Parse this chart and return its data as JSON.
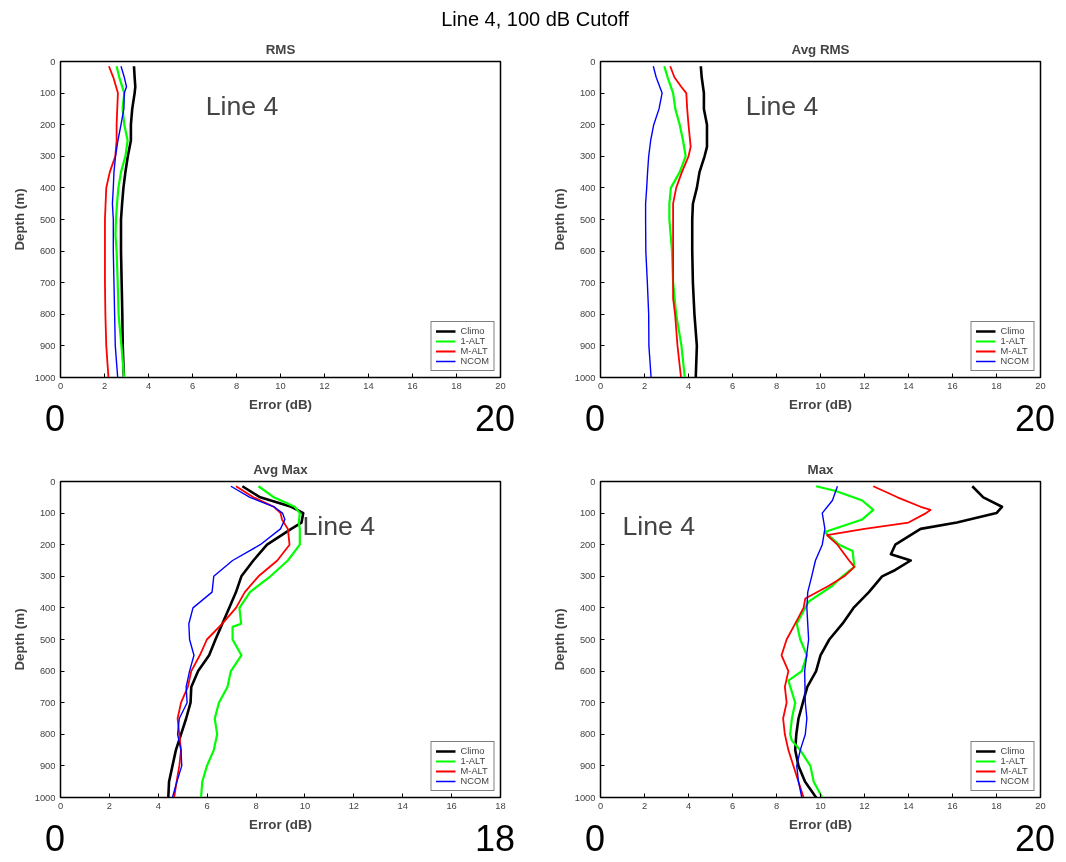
{
  "chart_data": [
    {
      "type": "line",
      "title": "RMS",
      "xlabel": "Error (dB)",
      "ylabel": "Depth (m)",
      "annotations": [
        "Line 4, 100 dB Cutoff",
        "Line 4",
        "0",
        "20"
      ],
      "xlim": [
        0,
        20
      ],
      "xticks": [
        0,
        2,
        4,
        6,
        8,
        10,
        12,
        14,
        16,
        18,
        20
      ],
      "ylim": [
        1000,
        0
      ],
      "yticks": [
        0,
        100,
        200,
        300,
        400,
        500,
        600,
        700,
        800,
        900,
        1000
      ],
      "legend": "bottom right",
      "grid": false,
      "series": [
        {
          "name": "Climo",
          "color": "#000000",
          "x": [
            3.34,
            3.37,
            3.4,
            3.37,
            3.26,
            3.2,
            3.2,
            3.06,
            2.95,
            2.86,
            2.8,
            2.75,
            2.75,
            2.78,
            2.81,
            2.83,
            2.88
          ],
          "values": [
            15,
            50,
            80,
            100,
            150,
            200,
            250,
            300,
            350,
            400,
            450,
            500,
            600,
            700,
            800,
            900,
            1000
          ]
        },
        {
          "name": "1-ALT",
          "color": "#00ff00",
          "x": [
            2.55,
            2.67,
            2.9,
            2.82,
            2.9,
            3.05,
            2.95,
            2.75,
            2.63,
            2.57,
            2.52,
            2.5,
            2.55,
            2.6,
            2.64,
            2.77,
            2.89
          ],
          "values": [
            15,
            50,
            100,
            150,
            200,
            250,
            300,
            350,
            400,
            450,
            500,
            550,
            600,
            700,
            800,
            900,
            1000
          ]
        },
        {
          "name": "M-ALT",
          "color": "#ff0000",
          "x": [
            2.2,
            2.4,
            2.61,
            2.58,
            2.55,
            2.55,
            2.49,
            2.24,
            2.08,
            2.05,
            2.02,
            2.02,
            2.02,
            2.04,
            2.08,
            2.18
          ],
          "values": [
            15,
            50,
            100,
            150,
            200,
            250,
            300,
            350,
            400,
            450,
            500,
            600,
            700,
            800,
            900,
            1000
          ]
        },
        {
          "name": "NCOM",
          "color": "#0000ff",
          "x": [
            2.75,
            2.9,
            3.0,
            2.9,
            2.88,
            2.75,
            2.61,
            2.5,
            2.43,
            2.4,
            2.36,
            2.4,
            2.4,
            2.43,
            2.46,
            2.49,
            2.6
          ],
          "values": [
            15,
            50,
            80,
            100,
            150,
            200,
            250,
            300,
            350,
            400,
            450,
            500,
            600,
            700,
            800,
            900,
            1000
          ]
        }
      ]
    },
    {
      "type": "line",
      "title": "Avg RMS",
      "xlabel": "Error (dB)",
      "ylabel": "Depth (m)",
      "annotations": [
        "Line 4",
        "0",
        "20"
      ],
      "xlim": [
        0,
        20
      ],
      "xticks": [
        0,
        2,
        4,
        6,
        8,
        10,
        12,
        14,
        16,
        18,
        20
      ],
      "ylim": [
        1000,
        0
      ],
      "yticks": [
        0,
        100,
        200,
        300,
        400,
        500,
        600,
        700,
        800,
        900,
        1000
      ],
      "legend": "bottom right",
      "grid": false,
      "series": [
        {
          "name": "Climo",
          "color": "#000000",
          "x": [
            4.56,
            4.6,
            4.7,
            4.7,
            4.84,
            4.84,
            4.73,
            4.5,
            4.38,
            4.2,
            4.17,
            4.17,
            4.2,
            4.27,
            4.38,
            4.33
          ],
          "values": [
            15,
            50,
            100,
            150,
            200,
            270,
            300,
            350,
            400,
            450,
            500,
            600,
            700,
            800,
            900,
            1000
          ]
        },
        {
          "name": "1-ALT",
          "color": "#00ff00",
          "x": [
            2.9,
            3.05,
            3.3,
            3.4,
            3.6,
            3.75,
            3.87,
            3.6,
            3.2,
            3.13,
            3.13,
            3.25,
            3.3,
            3.44,
            3.68,
            3.83
          ],
          "values": [
            15,
            50,
            100,
            150,
            200,
            250,
            300,
            350,
            400,
            450,
            500,
            600,
            700,
            800,
            900,
            1000
          ]
        },
        {
          "name": "M-ALT",
          "color": "#ff0000",
          "x": [
            3.17,
            3.36,
            3.67,
            3.9,
            3.94,
            4.0,
            4.1,
            4.0,
            3.7,
            3.44,
            3.3,
            3.3,
            3.3,
            3.3,
            3.3,
            3.39,
            3.5,
            3.66
          ],
          "values": [
            15,
            50,
            80,
            100,
            150,
            200,
            270,
            300,
            350,
            400,
            450,
            500,
            600,
            700,
            750,
            800,
            900,
            1000
          ]
        },
        {
          "name": "NCOM",
          "color": "#0000ff",
          "x": [
            2.4,
            2.53,
            2.8,
            2.66,
            2.42,
            2.28,
            2.19,
            2.14,
            2.1,
            2.05,
            2.05,
            2.06,
            2.13,
            2.19,
            2.2,
            2.3
          ],
          "values": [
            15,
            50,
            100,
            150,
            200,
            250,
            300,
            350,
            400,
            450,
            500,
            600,
            700,
            800,
            900,
            1000
          ]
        }
      ]
    },
    {
      "type": "line",
      "title": "Avg Max",
      "xlabel": "Error (dB)",
      "ylabel": "Depth (m)",
      "annotations": [
        "Line 4",
        "0",
        "18"
      ],
      "xlim": [
        0,
        18
      ],
      "xticks": [
        0,
        2,
        4,
        6,
        8,
        10,
        12,
        14,
        16,
        18
      ],
      "ylim": [
        1000,
        0
      ],
      "yticks": [
        0,
        100,
        200,
        300,
        400,
        500,
        600,
        700,
        800,
        900,
        1000
      ],
      "legend": "bottom right",
      "grid": false,
      "series": [
        {
          "name": "Climo",
          "color": "#000000",
          "x": [
            7.44,
            8.17,
            9.44,
            9.93,
            9.86,
            9.44,
            8.45,
            7.89,
            7.4,
            7.18,
            6.9,
            6.62,
            6.34,
            6.08,
            5.63,
            5.35,
            5.32,
            5.14,
            4.93,
            4.72,
            4.58,
            4.44,
            4.41
          ],
          "values": [
            15,
            50,
            80,
            100,
            130,
            150,
            200,
            250,
            300,
            350,
            400,
            450,
            500,
            550,
            600,
            650,
            700,
            750,
            800,
            850,
            900,
            950,
            1000
          ]
        },
        {
          "name": "1-ALT",
          "color": "#00ff00",
          "x": [
            8.1,
            8.73,
            9.58,
            9.79,
            9.75,
            9.79,
            9.79,
            9.3,
            8.59,
            7.75,
            7.32,
            7.39,
            7.04,
            7.04,
            7.4,
            6.97,
            6.83,
            6.48,
            6.31,
            6.41,
            6.27,
            5.99,
            5.8,
            5.75
          ],
          "values": [
            15,
            50,
            80,
            100,
            130,
            150,
            200,
            250,
            300,
            350,
            400,
            450,
            460,
            500,
            550,
            600,
            650,
            700,
            750,
            800,
            850,
            900,
            950,
            1000
          ]
        },
        {
          "name": "M-ALT",
          "color": "#ff0000",
          "x": [
            7.18,
            7.89,
            8.73,
            9.0,
            9.06,
            9.3,
            9.37,
            8.87,
            8.1,
            7.54,
            7.18,
            6.62,
            5.99,
            5.7,
            5.35,
            5.21,
            4.93,
            4.79,
            4.86,
            4.93,
            4.86,
            4.75,
            4.65
          ],
          "values": [
            15,
            50,
            80,
            100,
            120,
            150,
            200,
            250,
            300,
            350,
            400,
            450,
            500,
            550,
            600,
            650,
            700,
            750,
            800,
            850,
            900,
            950,
            1000
          ]
        },
        {
          "name": "NCOM",
          "color": "#0000ff",
          "x": [
            6.97,
            7.75,
            8.73,
            9.08,
            9.18,
            9.0,
            8.17,
            7.04,
            6.27,
            6.2,
            5.42,
            5.25,
            5.28,
            5.46,
            5.28,
            5.14,
            5.18,
            4.86,
            4.79,
            4.93,
            4.96,
            4.76,
            4.58
          ],
          "values": [
            15,
            50,
            80,
            100,
            120,
            150,
            200,
            250,
            300,
            350,
            400,
            450,
            500,
            550,
            600,
            650,
            700,
            750,
            800,
            850,
            900,
            950,
            1000
          ]
        }
      ]
    },
    {
      "type": "line",
      "title": "Max",
      "xlabel": "Error (dB)",
      "ylabel": "Depth (m)",
      "annotations": [
        "Line 4",
        "0",
        "20"
      ],
      "xlim": [
        0,
        20
      ],
      "xticks": [
        0,
        2,
        4,
        6,
        8,
        10,
        12,
        14,
        16,
        18,
        20
      ],
      "ylim": [
        1000,
        0
      ],
      "yticks": [
        0,
        100,
        200,
        300,
        400,
        500,
        600,
        700,
        800,
        900,
        1000
      ],
      "legend": "bottom right",
      "grid": false,
      "series": [
        {
          "name": "Climo",
          "color": "#000000",
          "x": [
            16.9,
            17.4,
            18.25,
            18.0,
            16.2,
            14.55,
            13.4,
            13.2,
            14.1,
            13.4,
            12.8,
            12.2,
            11.5,
            11.0,
            10.4,
            10.0,
            9.8,
            9.4,
            9.2,
            9.0,
            8.9,
            8.85,
            9.0,
            9.3,
            9.8
          ],
          "values": [
            15,
            50,
            80,
            100,
            130,
            150,
            200,
            230,
            250,
            280,
            300,
            350,
            400,
            450,
            500,
            550,
            600,
            650,
            700,
            750,
            800,
            850,
            900,
            950,
            1000
          ]
        },
        {
          "name": "1-ALT",
          "color": "#00ff00",
          "x": [
            9.8,
            10.7,
            11.9,
            12.4,
            11.9,
            10.2,
            10.85,
            11.46,
            11.54,
            11.0,
            10.54,
            9.46,
            9.15,
            8.92,
            9.08,
            9.38,
            9.15,
            8.54,
            8.85,
            8.7,
            8.62,
            8.7,
            9.08,
            9.54,
            9.69,
            10.08
          ],
          "values": [
            15,
            30,
            60,
            90,
            120,
            160,
            200,
            220,
            270,
            300,
            330,
            380,
            420,
            450,
            500,
            550,
            600,
            630,
            700,
            750,
            800,
            820,
            850,
            900,
            950,
            1000
          ]
        },
        {
          "name": "M-ALT",
          "color": "#ff0000",
          "x": [
            12.4,
            13.5,
            14.55,
            15.0,
            14.8,
            14.0,
            12.0,
            10.3,
            10.77,
            11.3,
            11.54,
            11.08,
            10.38,
            9.31,
            9.23,
            8.85,
            8.46,
            8.23,
            8.54,
            8.38,
            8.46,
            8.3,
            8.38,
            8.54,
            8.77,
            9.0,
            9.23
          ],
          "values": [
            15,
            50,
            80,
            90,
            100,
            130,
            150,
            170,
            200,
            250,
            270,
            300,
            330,
            370,
            400,
            450,
            500,
            550,
            600,
            650,
            700,
            750,
            800,
            850,
            900,
            950,
            1000
          ]
        },
        {
          "name": "NCOM",
          "color": "#0000ff",
          "x": [
            10.77,
            10.54,
            10.08,
            10.2,
            10.08,
            9.77,
            9.6,
            9.42,
            9.38,
            9.46,
            9.28,
            9.31,
            9.38,
            9.31,
            9.08,
            8.92,
            9.0,
            9.15
          ],
          "values": [
            15,
            60,
            100,
            150,
            200,
            250,
            300,
            350,
            400,
            500,
            600,
            700,
            750,
            800,
            850,
            900,
            950,
            1000
          ]
        }
      ]
    }
  ]
}
